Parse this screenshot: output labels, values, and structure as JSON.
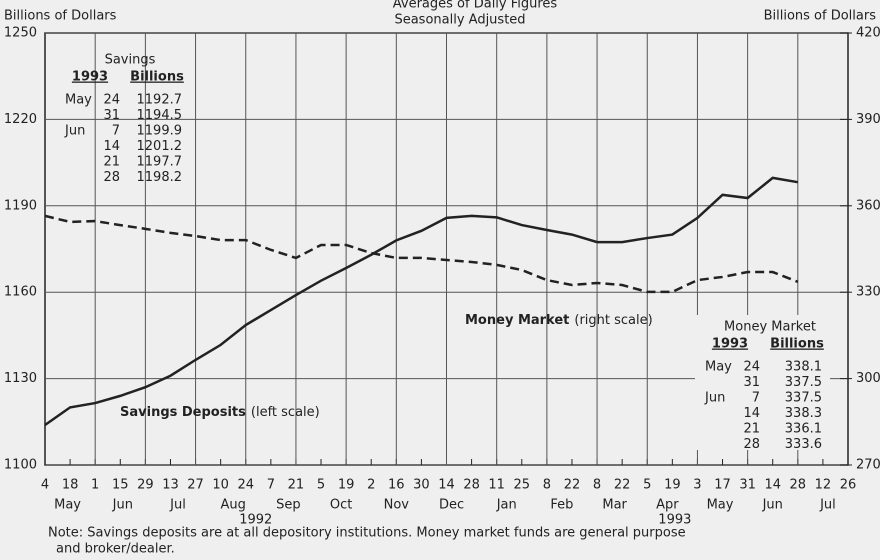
{
  "chart_data": {
    "type": "line",
    "title": "Averages of Daily Figures",
    "subtitle": "Seasonally Adjusted",
    "y_label": "Billions of Dollars",
    "y2_label": "Billions of Dollars",
    "categories": [
      "4",
      "18",
      "1",
      "15",
      "29",
      "13",
      "27",
      "10",
      "24",
      "7",
      "21",
      "5",
      "19",
      "2",
      "16",
      "30",
      "14",
      "28",
      "11",
      "25",
      "8",
      "22",
      "8",
      "22",
      "5",
      "19",
      "3",
      "17",
      "31",
      "14",
      "28",
      "12",
      "26"
    ],
    "months": [
      "May",
      "Jun",
      "Jul",
      "Aug",
      "Sep",
      "Oct",
      "Nov",
      "Dec",
      "Jan",
      "Feb",
      "Mar",
      "Apr",
      "May",
      "Jun",
      "Jul"
    ],
    "years": [
      "1992",
      "1993"
    ],
    "series": [
      {
        "name": "Savings Deposits",
        "label_note": "(left scale)",
        "color": "#222222",
        "dash": false,
        "axis": "y",
        "values": [
          1113.9,
          1120,
          1121.5,
          1124,
          1127,
          1131,
          1136.5,
          1141.7,
          1148.6,
          1153.8,
          1159,
          1164,
          1168.4,
          1173,
          1178,
          1181.3,
          1185.8,
          1186.5,
          1186,
          1183.3,
          1181.6,
          1180,
          1177.4,
          1177.4,
          1178.8,
          1180,
          1185.8,
          1193.8,
          1192.7,
          1199.7,
          1198.2,
          null,
          null
        ]
      },
      {
        "name": "Money Market",
        "label_note": "(right scale)",
        "color": "#222222",
        "dash": true,
        "axis": "y2",
        "values": [
          356.5,
          354.4,
          354.7,
          353.3,
          352,
          350.6,
          349.5,
          348.1,
          348.1,
          344.7,
          341.9,
          346.4,
          346.4,
          343.6,
          341.9,
          341.9,
          341.2,
          340.5,
          339.5,
          337.7,
          334.2,
          332.5,
          333.2,
          332.5,
          330.1,
          330.1,
          334.2,
          335.3,
          337,
          337,
          333.6,
          null,
          null
        ]
      }
    ],
    "ylim": [
      1100,
      1250
    ],
    "yticks": [
      1100,
      1130,
      1160,
      1190,
      1220,
      1250
    ],
    "y2lim": [
      270,
      420
    ],
    "y2ticks": [
      270,
      300,
      330,
      360,
      390,
      420
    ],
    "grid": true,
    "tables": [
      {
        "title": "Savings",
        "year": "1993",
        "unit": "Billions",
        "rows": [
          {
            "month": "May",
            "day": "24",
            "value": 1192.7
          },
          {
            "day": "31",
            "value": 1194.5
          },
          {
            "month": "Jun",
            "day": "7",
            "value": 1199.9
          },
          {
            "day": "14",
            "value": 1201.2
          },
          {
            "day": "21",
            "value": 1197.7
          },
          {
            "day": "28",
            "value": 1198.2
          }
        ]
      },
      {
        "title": "Money Market",
        "year": "1993",
        "unit": "Billions",
        "rows": [
          {
            "month": "May",
            "day": "24",
            "value": 338.1
          },
          {
            "day": "31",
            "value": 337.5
          },
          {
            "month": "Jun",
            "day": "7",
            "value": 337.5
          },
          {
            "day": "14",
            "value": 338.3
          },
          {
            "day": "21",
            "value": 336.1
          },
          {
            "day": "28",
            "value": 333.6
          }
        ]
      }
    ],
    "note": [
      "Note: Savings deposits are at all depository institutions. Money market funds are general purpose",
      "and broker/dealer."
    ]
  }
}
